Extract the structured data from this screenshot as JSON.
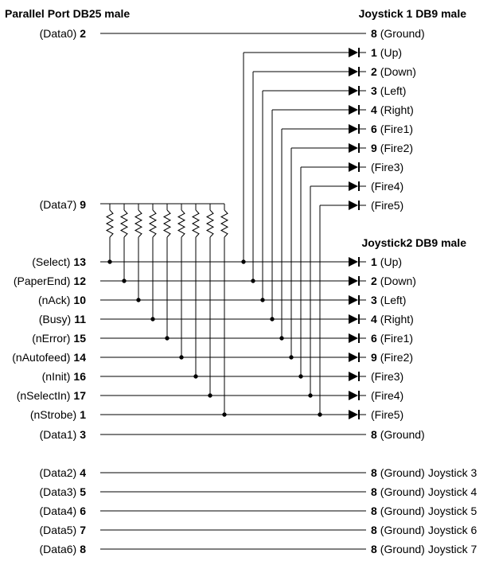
{
  "titles": {
    "parallel_port": "Parallel Port DB25 male",
    "joystick1": "Joystick 1 DB9 male",
    "joystick2": "Joystick2 DB9 male"
  },
  "data0": {
    "name": "(Data0)",
    "pin": "2"
  },
  "data7": {
    "name": "(Data7)",
    "pin": "9"
  },
  "js1_ground": {
    "pin": "8",
    "name": "(Ground)"
  },
  "js1_signals": [
    {
      "pin": "1",
      "name": "(Up)"
    },
    {
      "pin": "2",
      "name": "(Down)"
    },
    {
      "pin": "3",
      "name": "(Left)"
    },
    {
      "pin": "4",
      "name": "(Right)"
    },
    {
      "pin": "6",
      "name": "(Fire1)"
    },
    {
      "pin": "9",
      "name": "(Fire2)"
    },
    {
      "pin": "",
      "name": "(Fire3)"
    },
    {
      "pin": "",
      "name": "(Fire4)"
    },
    {
      "pin": "",
      "name": "(Fire5)"
    }
  ],
  "status_lines": [
    {
      "name": "(Select)",
      "pin": "13"
    },
    {
      "name": "(PaperEnd)",
      "pin": "12"
    },
    {
      "name": "(nAck)",
      "pin": "10"
    },
    {
      "name": "(Busy)",
      "pin": "11"
    },
    {
      "name": "(nError)",
      "pin": "15"
    },
    {
      "name": "(nAutofeed)",
      "pin": "14"
    },
    {
      "name": "(nInit)",
      "pin": "16"
    },
    {
      "name": "(nSelectIn)",
      "pin": "17"
    },
    {
      "name": "(nStrobe)",
      "pin": "1"
    }
  ],
  "js2_signals": [
    {
      "pin": "1",
      "name": "(Up)"
    },
    {
      "pin": "2",
      "name": "(Down)"
    },
    {
      "pin": "3",
      "name": "(Left)"
    },
    {
      "pin": "4",
      "name": "(Right)"
    },
    {
      "pin": "6",
      "name": "(Fire1)"
    },
    {
      "pin": "9",
      "name": "(Fire2)"
    },
    {
      "pin": "",
      "name": "(Fire3)"
    },
    {
      "pin": "",
      "name": "(Fire4)"
    },
    {
      "pin": "",
      "name": "(Fire5)"
    }
  ],
  "data1": {
    "name": "(Data1)",
    "pin": "3"
  },
  "js2_ground": {
    "pin": "8",
    "name": "(Ground)"
  },
  "extra_grounds": [
    {
      "name": "(Data2)",
      "pin": "4",
      "gpin": "8",
      "gname": "(Ground)",
      "joystick": "Joystick 3"
    },
    {
      "name": "(Data3)",
      "pin": "5",
      "gpin": "8",
      "gname": "(Ground)",
      "joystick": "Joystick 4"
    },
    {
      "name": "(Data4)",
      "pin": "6",
      "gpin": "8",
      "gname": "(Ground)",
      "joystick": "Joystick 5"
    },
    {
      "name": "(Data5)",
      "pin": "7",
      "gpin": "8",
      "gname": "(Ground)",
      "joystick": "Joystick 6"
    },
    {
      "name": "(Data6)",
      "pin": "8",
      "gpin": "8",
      "gname": "(Ground)",
      "joystick": "Joystick 7"
    }
  ]
}
